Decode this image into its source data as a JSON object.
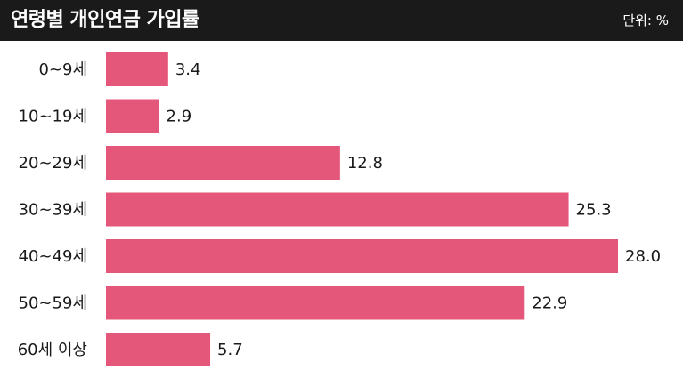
{
  "header": {
    "title": "연령별 개인연금 가입률",
    "unit": "단위: %"
  },
  "colors": {
    "bar": "#e5577a",
    "header_bg": "#1a1a1a"
  },
  "chart_data": {
    "type": "bar",
    "orientation": "horizontal",
    "title": "연령별 개인연금 가입률",
    "unit": "%",
    "categories": [
      "0~9세",
      "10~19세",
      "20~29세",
      "30~39세",
      "40~49세",
      "50~59세",
      "60세 이상"
    ],
    "values": [
      3.4,
      2.9,
      12.8,
      25.3,
      28.0,
      22.9,
      5.7
    ],
    "value_labels": [
      "3.4",
      "2.9",
      "12.8",
      "25.3",
      "28.0",
      "22.9",
      "5.7"
    ],
    "xlim": [
      0,
      28.0
    ],
    "grid": false,
    "legend": "none"
  }
}
